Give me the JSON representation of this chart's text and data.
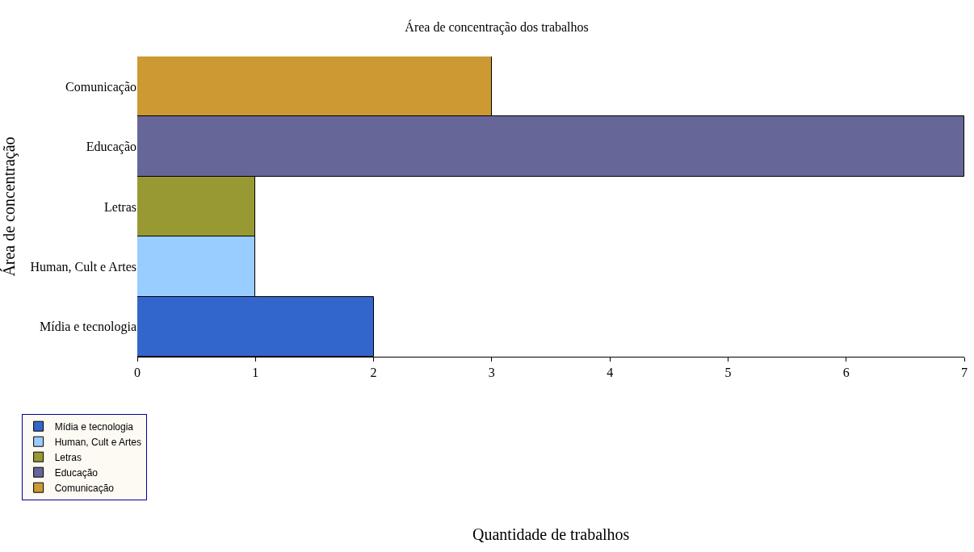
{
  "chart_data": {
    "type": "bar",
    "orientation": "horizontal",
    "title": "Área de concentração dos trabalhos",
    "annotations": [
      "Quantidade de trabalhos"
    ],
    "ylabel": "Área de concentração",
    "categories": [
      "Comunicação",
      "Educação",
      "Letras",
      "Human, Cult e Artes",
      "Mídia e tecnologia"
    ],
    "series": [
      {
        "name": "Mídia e tecnologia",
        "color": "#3366cc",
        "values": [
          null,
          null,
          null,
          null,
          2
        ]
      },
      {
        "name": "Human, Cult e Artes",
        "color": "#99ccff",
        "values": [
          null,
          null,
          null,
          1,
          null
        ]
      },
      {
        "name": "Letras",
        "color": "#999933",
        "values": [
          null,
          null,
          1,
          null,
          null
        ]
      },
      {
        "name": "Educação",
        "color": "#666699",
        "values": [
          null,
          7,
          null,
          null,
          null
        ]
      },
      {
        "name": "Comunicação",
        "color": "#cc9933",
        "values": [
          3,
          null,
          null,
          null,
          null
        ]
      }
    ],
    "xlim": [
      0,
      7
    ],
    "xticks": [
      0,
      1,
      2,
      3,
      4,
      5,
      6,
      7
    ],
    "legend": "bottom"
  }
}
